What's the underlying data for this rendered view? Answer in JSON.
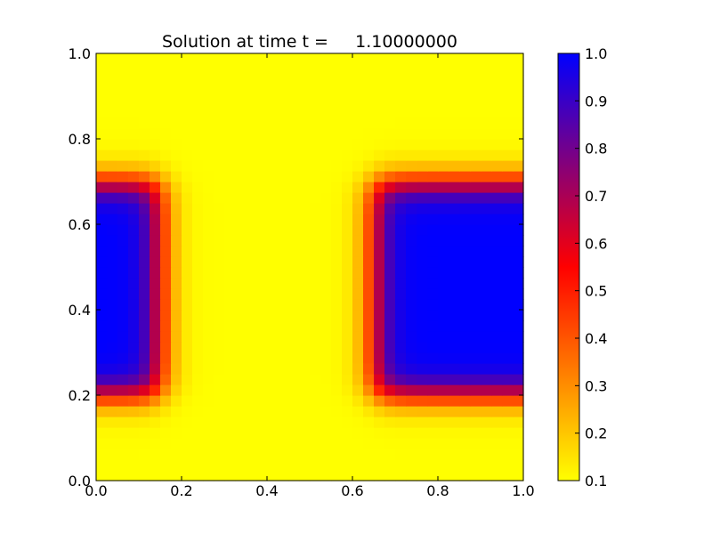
{
  "chart_data": {
    "type": "heatmap",
    "title": "Solution at time t =     1.10000000",
    "xlabel": "",
    "ylabel": "",
    "xlim": [
      0.0,
      1.0
    ],
    "ylim": [
      0.0,
      1.0
    ],
    "grid": false,
    "legend": "colorbar-right",
    "x_ticks": [
      "0.0",
      "0.2",
      "0.4",
      "0.6",
      "0.8",
      "1.0"
    ],
    "y_ticks": [
      "0.0",
      "0.2",
      "0.4",
      "0.6",
      "0.8",
      "1.0"
    ],
    "colorbar": {
      "range": [
        0.1,
        1.0
      ],
      "ticks": [
        "0.1",
        "0.2",
        "0.3",
        "0.4",
        "0.5",
        "0.6",
        "0.7",
        "0.8",
        "0.9",
        "1.0"
      ],
      "colormap": [
        "#ffff00",
        "#ff0000",
        "#0000ff"
      ]
    },
    "grid_cells": [
      40,
      40
    ],
    "field": {
      "background_value": 0.1,
      "peak_value": 1.0,
      "regions": [
        {
          "name": "left-block",
          "x_range": [
            0.0,
            0.15
          ],
          "y_range": [
            0.2,
            0.7
          ]
        },
        {
          "name": "right-block",
          "x_range": [
            0.65,
            1.0
          ],
          "y_range": [
            0.2,
            0.7
          ]
        }
      ]
    }
  }
}
